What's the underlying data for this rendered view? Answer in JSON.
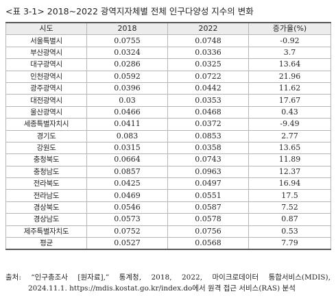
{
  "title": "<표 3-1> 2018~2022 광역지자체별 전체 인구다양성 지수의 변화",
  "table": {
    "headers": [
      "시도",
      "2018",
      "2022",
      "증가율(%)"
    ],
    "rows": [
      [
        "서울특별시",
        "0.0755",
        "0.0748",
        "-0.92"
      ],
      [
        "부산광역시",
        "0.0324",
        "0.0336",
        "3.7"
      ],
      [
        "대구광역시",
        "0.0286",
        "0.0325",
        "13.64"
      ],
      [
        "인천광역시",
        "0.0592",
        "0.0722",
        "21.96"
      ],
      [
        "광주광역시",
        "0.0396",
        "0.0442",
        "11.62"
      ],
      [
        "대전광역시",
        "0.03",
        "0.0353",
        "17.67"
      ],
      [
        "울산광역시",
        "0.0466",
        "0.0468",
        "0.43"
      ],
      [
        "세종특별자치시",
        "0.0411",
        "0.0372",
        "-9.49"
      ],
      [
        "경기도",
        "0.083",
        "0.0853",
        "2.77"
      ],
      [
        "강원도",
        "0.0315",
        "0.0358",
        "13.65"
      ],
      [
        "충청북도",
        "0.0664",
        "0.0743",
        "11.89"
      ],
      [
        "충청남도",
        "0.0857",
        "0.0963",
        "12.37"
      ],
      [
        "전라북도",
        "0.0425",
        "0.0497",
        "16.94"
      ],
      [
        "전라남도",
        "0.0469",
        "0.0551",
        "17.5"
      ],
      [
        "경상북도",
        "0.0546",
        "0.0587",
        "7.52"
      ],
      [
        "경상남도",
        "0.0573",
        "0.0578",
        "0.87"
      ],
      [
        "제주특별자치도",
        "0.0752",
        "0.0756",
        "0.53"
      ],
      [
        "평균",
        "0.0527",
        "0.0568",
        "7.79"
      ]
    ]
  },
  "source": {
    "words": [
      "출처:",
      "“인구총조사",
      "[원자료],”",
      "통계청,",
      "2018,",
      "2022,",
      "마이크로데이터",
      "통합서비스(MDIS),"
    ],
    "line2": "2024.11.1. https://mdis.kostat.go.kr/index.do에서 원격 접근 서비스(RAS) 분석"
  }
}
